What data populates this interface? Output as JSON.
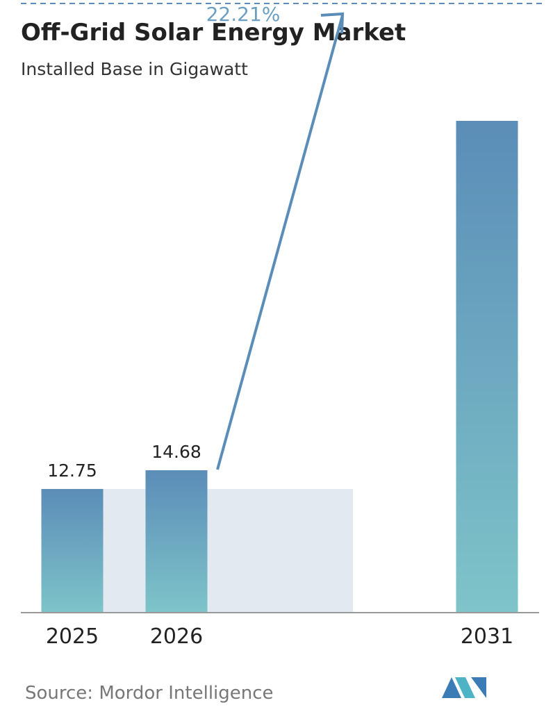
{
  "chart_data": {
    "type": "bar",
    "title": "Off-Grid Solar Energy Market",
    "subtitle": "Installed Base in Gigawatt",
    "categories": [
      "2025",
      "2026",
      "2031"
    ],
    "values": [
      12.75,
      14.68,
      50.7
    ],
    "value_labels": [
      "12.75",
      "14.68",
      null
    ],
    "color": [
      "#5b8db8",
      "#7ec4c9"
    ],
    "annotation": "22.21%",
    "source": "Source: Mordor Intelligence"
  }
}
